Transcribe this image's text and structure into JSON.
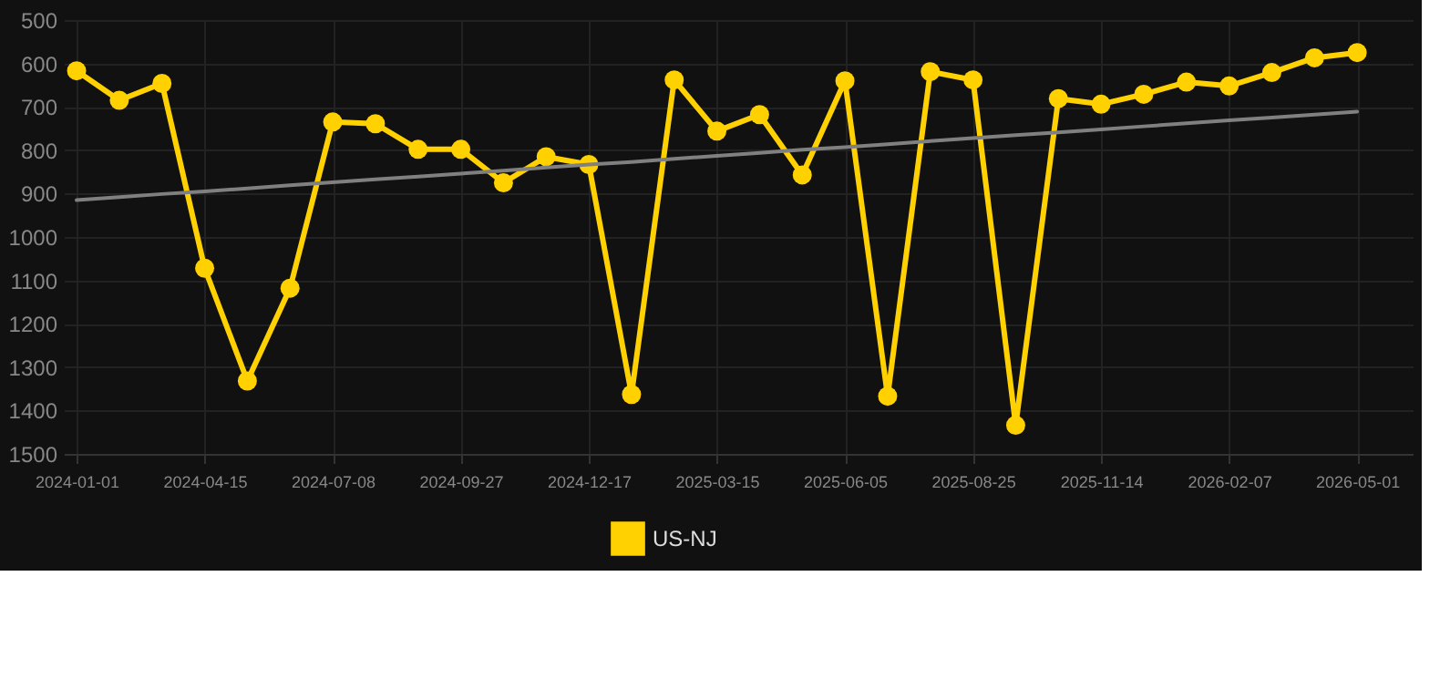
{
  "chart_data": {
    "type": "line",
    "categories": [
      "2024-01-01",
      null,
      null,
      "2024-04-15",
      null,
      null,
      "2024-07-08",
      null,
      null,
      "2024-09-27",
      null,
      null,
      "2024-12-17",
      null,
      null,
      "2025-03-15",
      null,
      null,
      "2025-06-05",
      null,
      null,
      "2025-08-25",
      null,
      null,
      "2025-11-14",
      null,
      null,
      "2026-02-07",
      null,
      null,
      "2026-05-01"
    ],
    "series": [
      {
        "name": "US-NJ",
        "color": "#ffd100",
        "marker": "circle",
        "values": [
          617,
          685,
          646,
          1072,
          1332,
          1118,
          735,
          739,
          798,
          798,
          875,
          815,
          833,
          1363,
          638,
          756,
          718,
          857,
          640,
          1367,
          619,
          638,
          1434,
          681,
          694,
          671,
          643,
          652,
          621,
          587,
          575
        ]
      },
      {
        "type": "line",
        "color": "#808080",
        "marker": "none",
        "values": [
          915,
          908,
          901,
          895,
          888,
          881,
          874,
          867,
          861,
          854,
          847,
          840,
          833,
          827,
          820,
          813,
          806,
          799,
          793,
          786,
          779,
          772,
          765,
          759,
          752,
          745,
          738,
          731,
          725,
          718,
          711
        ]
      }
    ],
    "ylim": [
      1500,
      500
    ],
    "yticks": [
      500,
      600,
      700,
      800,
      900,
      1000,
      1100,
      1200,
      1300,
      1400,
      1500
    ],
    "grid": true,
    "legend": "bottom"
  }
}
